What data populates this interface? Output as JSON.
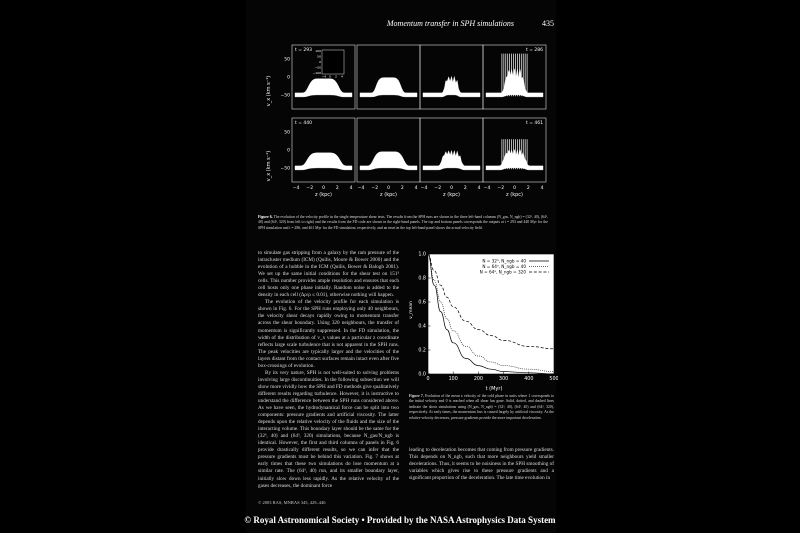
{
  "header": {
    "running_title": "Momentum transfer in SPH simulations",
    "page_number": "435"
  },
  "figure6": {
    "ylabel": "v_x (km s⁻¹)",
    "xlabel": "z (kpc)",
    "panel_time_labels": [
      "t = 293",
      "t = 286",
      "t = 440",
      "t = 461"
    ],
    "xticks": [
      "−4",
      "−2",
      "0",
      "2",
      "4"
    ],
    "yticks": [
      "50",
      "0",
      "−50"
    ],
    "inset": {
      "yticks": [
        "100",
        "50",
        "0",
        "−50",
        "−100"
      ],
      "xticks": [
        "−4",
        "0",
        "2",
        "4"
      ]
    },
    "caption_label": "Figure 6.",
    "caption_text": "The evolution of the velocity profile in the single temperature shear tests. The results from the SPH runs are shown in the three left-hand columns (N_gas, N_ngb) = (32³, 40), (64³, 40) and (64³, 320) from left to right) and the results from the FD code are shown in the right-hand panels. The top and bottom panels corresponds the outputs at t = 293 and 440 Myr for the SPH simulation and t = 286, and 461 Myr for the FD simulation, respectively, and an inset in the top left-hand panel shows the actual velocity field."
  },
  "figure7": {
    "chart_data": {
      "type": "line",
      "xlabel": "t (Myr)",
      "ylabel": "v_mean",
      "xlim": [
        0,
        500
      ],
      "ylim": [
        0,
        1.0
      ],
      "xticks": [
        "0",
        "100",
        "200",
        "300",
        "400",
        "500"
      ],
      "yticks": [
        "0.0",
        "0.2",
        "0.4",
        "0.6",
        "0.8",
        "1.0"
      ],
      "legend_position": "top-right",
      "series": [
        {
          "name": "N = 32³, N_ngb = 40",
          "style": "solid",
          "x": [
            0,
            25,
            50,
            75,
            100,
            150,
            200,
            250,
            300,
            400,
            500
          ],
          "values": [
            1.0,
            0.74,
            0.52,
            0.37,
            0.26,
            0.13,
            0.07,
            0.04,
            0.02,
            0.01,
            0.0
          ]
        },
        {
          "name": "N = 64³, N_ngb = 40",
          "style": "dotted",
          "x": [
            0,
            25,
            50,
            75,
            100,
            150,
            200,
            250,
            300,
            400,
            500
          ],
          "values": [
            1.0,
            0.78,
            0.6,
            0.46,
            0.36,
            0.23,
            0.15,
            0.1,
            0.07,
            0.04,
            0.02
          ]
        },
        {
          "name": "N = 64³, N_ngb = 320",
          "style": "dashed",
          "x": [
            0,
            25,
            50,
            75,
            100,
            150,
            200,
            250,
            300,
            400,
            500
          ],
          "values": [
            1.0,
            0.86,
            0.74,
            0.64,
            0.56,
            0.44,
            0.37,
            0.32,
            0.28,
            0.23,
            0.21
          ]
        }
      ]
    },
    "caption_label": "Figure 7.",
    "caption_text": "Evolution of the mean x velocity of the cold phase in units where 1 corresponds to the initial velocity and 0 is reached when all shear has gone. Solid, dotted, and dashed lines indicate the shear simulations using (N_gas, N_ngb) = (32³, 40), (64³, 40) and (64³, 320), respectively. At early times, the momentum loss is caused largely by artificial viscosity. As the relative velocity decreases, pressure gradients provide the more important deceleration."
  },
  "body_left": [
    "to simulate gas stripping from a galaxy by the ram pressure of the intracluster medium (ICM) (Quilis, Moore & Bower 2000) and the evolution of a bubble in the ICM (Quilis, Bower & Balogh 2001). We set up the same initial conditions for the shear test on 151³ cells. This number provides ample resolution and ensures that each cell hosts only one phase initially. Random noise is added to the density in each cell (Δρ/ρ ≤ 0.01), otherwise nothing will happen.",
    "The evolution of the velocity profile for each simulation is shown in Fig. 6. For the SPH runs employing only 40 neighbours, the velocity shear decays rapidly owing to momentum transfer across the shear boundary. Using 320 neighbours, the transfer of momentum is significantly suppressed. In the FD simulation, the width of the distribution of v_x values at a particular z coordinate reflects large scale turbulence that is not apparent in the SPH runs. The peak velocities are typically larger and the velocities of the layers distant from the contact surfaces remain intact even after five box-crossings of evolution.",
    "By its very nature, SPH is not well-suited to solving problems involving large discontinuities. In the following subsection we will show more vividly how the SPH and FD methods give qualitatively different results regarding turbulence. However, it is instructive to understand the difference between the SPH runs considered above. As we have seen, the hydrodynamical force can be split into two components: pressure gradients and artificial viscosity. The latter depends upon the relative velocity of the fluids and the size of the interacting volume. This boundary layer should be the same for the (32³, 40) and (64³, 320) simulations, because N_gas/N_ngb is identical. However, the first and third columns of panels in Fig. 6 provide drastically different results, so we can infer that the pressure gradients must be behind this variation. Fig. 7 shows at early times that these two simulations do lose momentum at a similar rate. The (64³, 40) run, and its smaller boundary layer, initially slow down less rapidly. As the relative velocity of the gases decreases, the dominant force"
  ],
  "body_right": "leading to deceleration becomes that coming from pressure gradients. This depends on N_ngb, such that more neighbours yield smaller decelerations. Thus, it seems to be noisiness in the SPH smoothing of variables which gives rise to these pressure gradients and a significant proportion of the deceleration. The late time evolution in",
  "footer": {
    "copyright": "© 2003 RAS, MNRAS 345, 429–446"
  },
  "ads_banner": "© Royal Astronomical Society • Provided by the NASA Astrophysics Data System"
}
